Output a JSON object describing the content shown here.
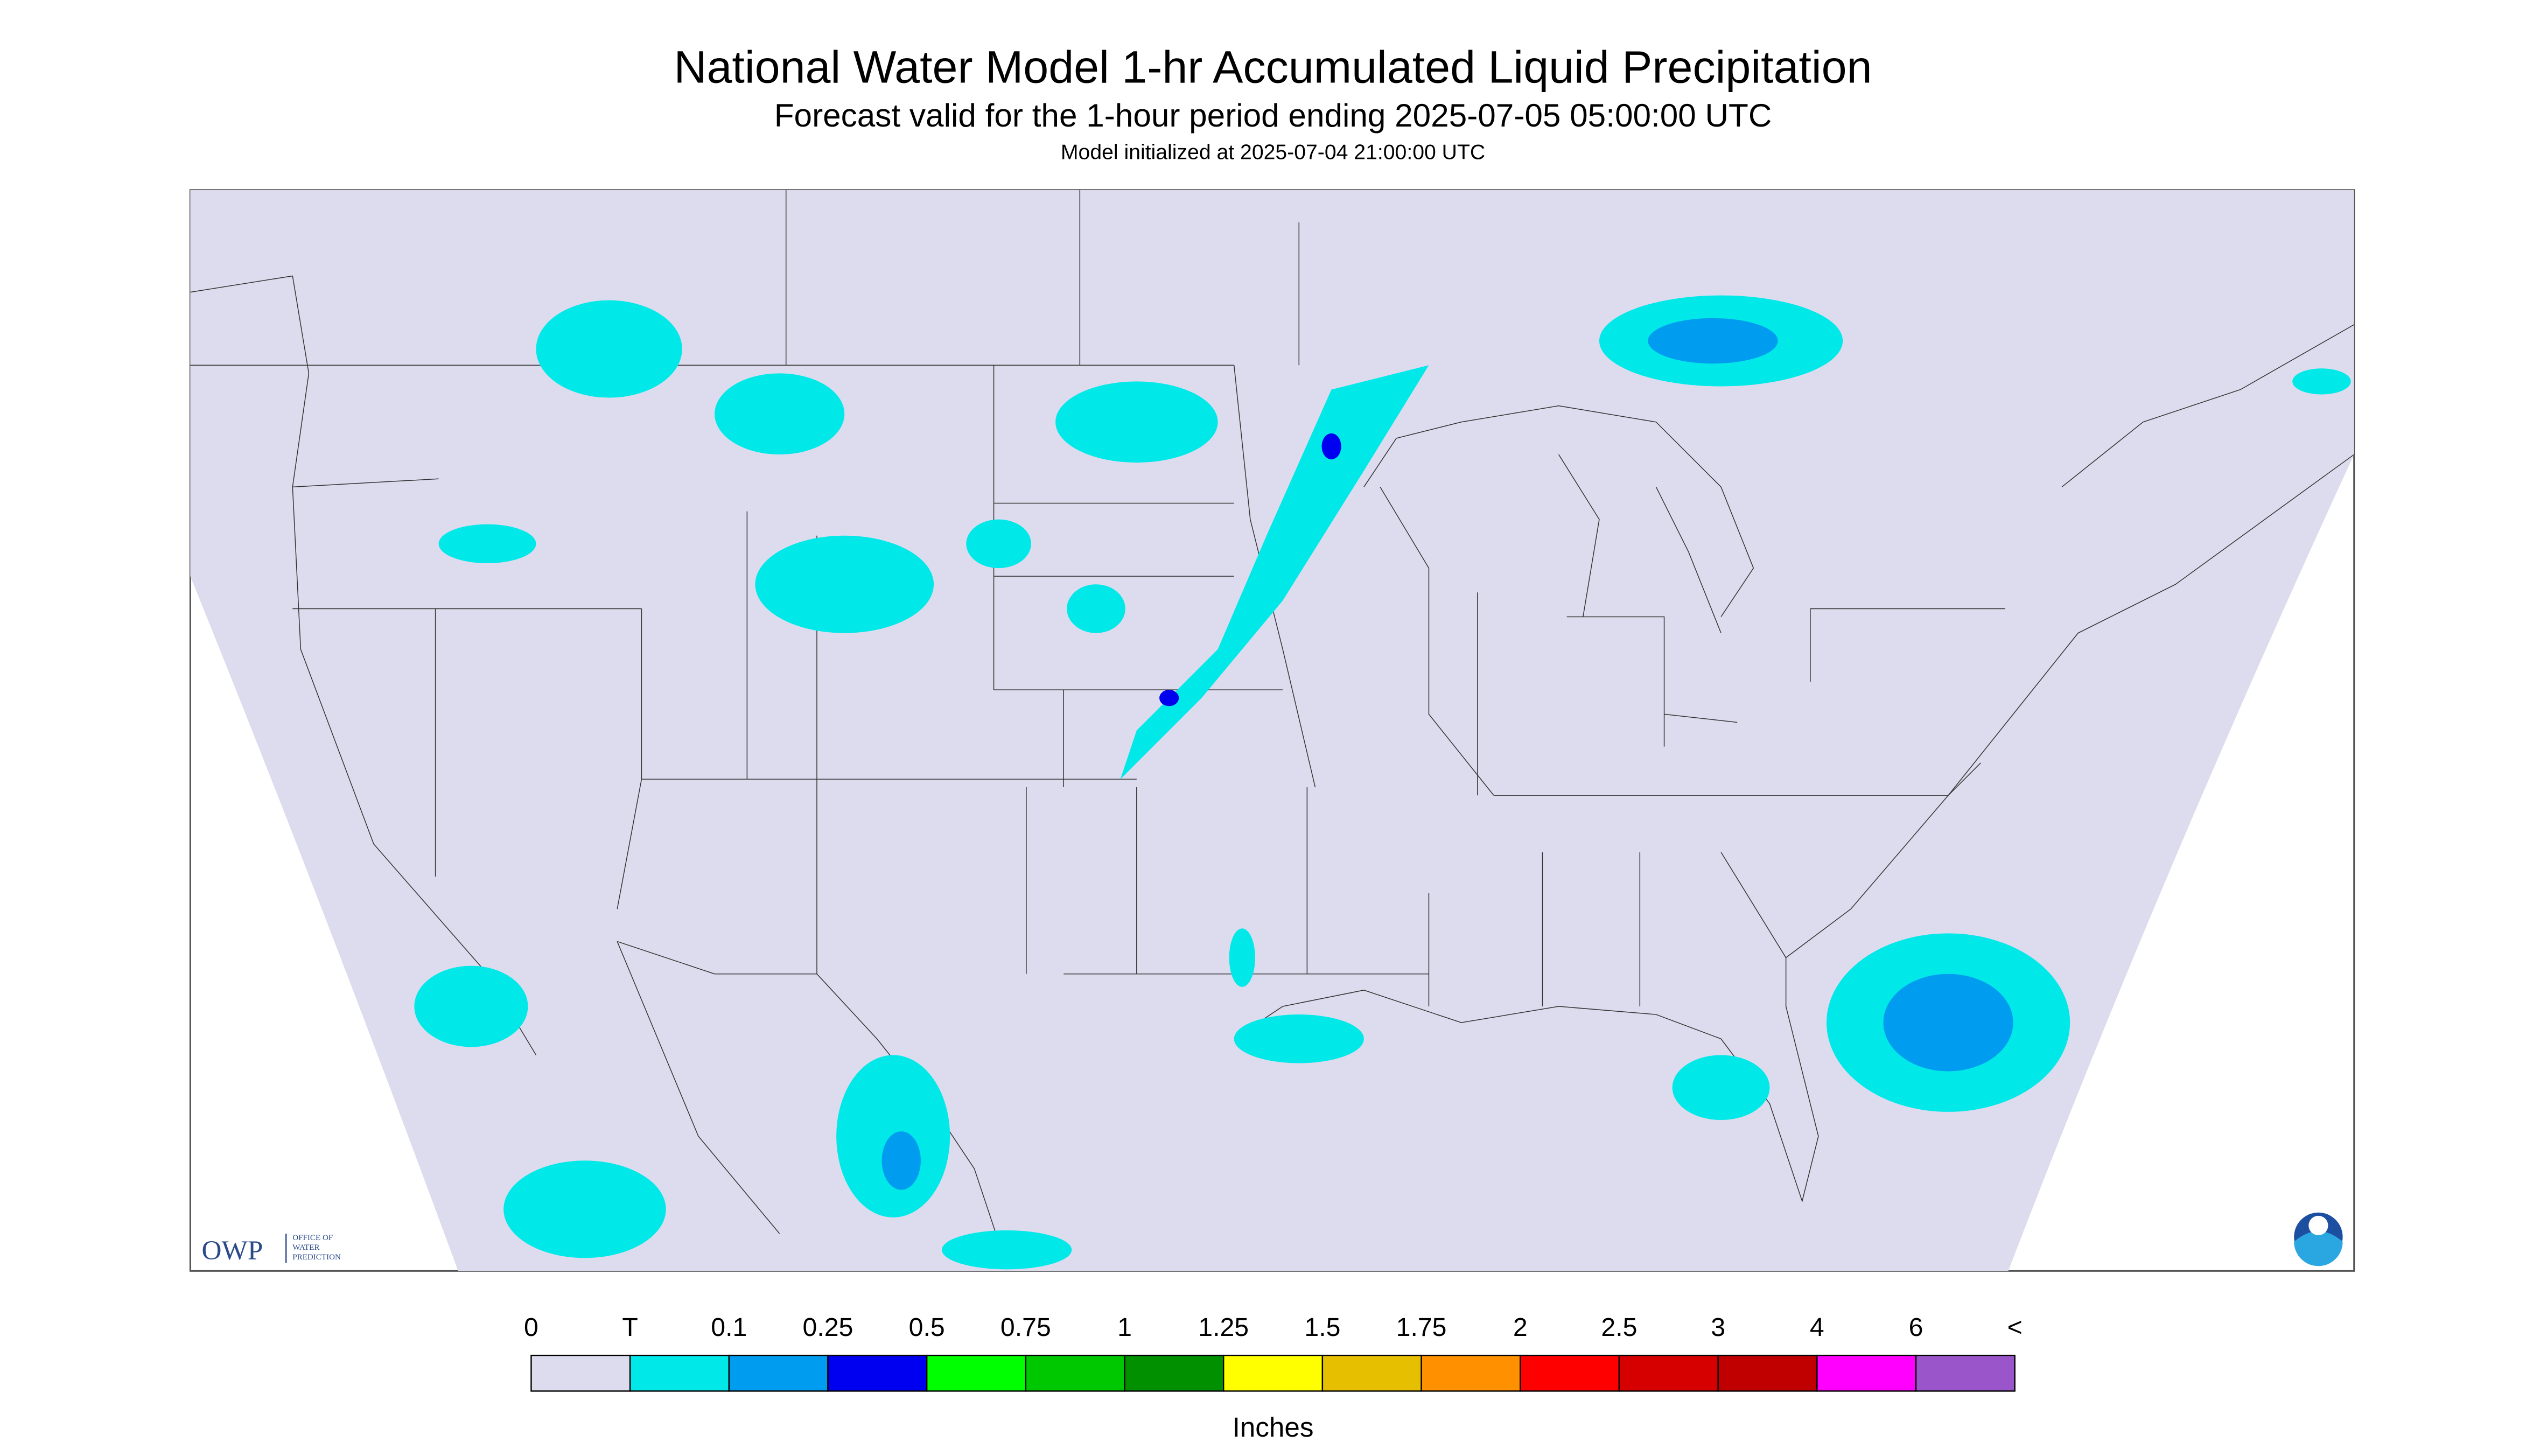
{
  "header": {
    "title": "National Water Model 1-hr Accumulated Liquid Precipitation",
    "subtitle": "Forecast valid for the 1-hour period ending 2025-07-05 05:00:00 UTC",
    "init": "Model initialized at 2025-07-04 21:00:00 UTC"
  },
  "legend": {
    "labels": [
      "0",
      "T",
      "0.1",
      "0.25",
      "0.5",
      "0.75",
      "1",
      "1.25",
      "1.5",
      "1.75",
      "2",
      "2.5",
      "3",
      "4",
      "6",
      "<"
    ],
    "colors": [
      "#dcdcee",
      "#00e8e8",
      "#009cf0",
      "#0000f0",
      "#00ff00",
      "#00c800",
      "#009000",
      "#ffff00",
      "#e6c000",
      "#ff9000",
      "#ff0000",
      "#d60000",
      "#c00000",
      "#ff00ff",
      "#9955c9"
    ],
    "units": "Inches"
  },
  "logo": {
    "short": "OWP",
    "line1": "OFFICE OF",
    "line2": "WATER",
    "line3": "PREDICTION"
  }
}
